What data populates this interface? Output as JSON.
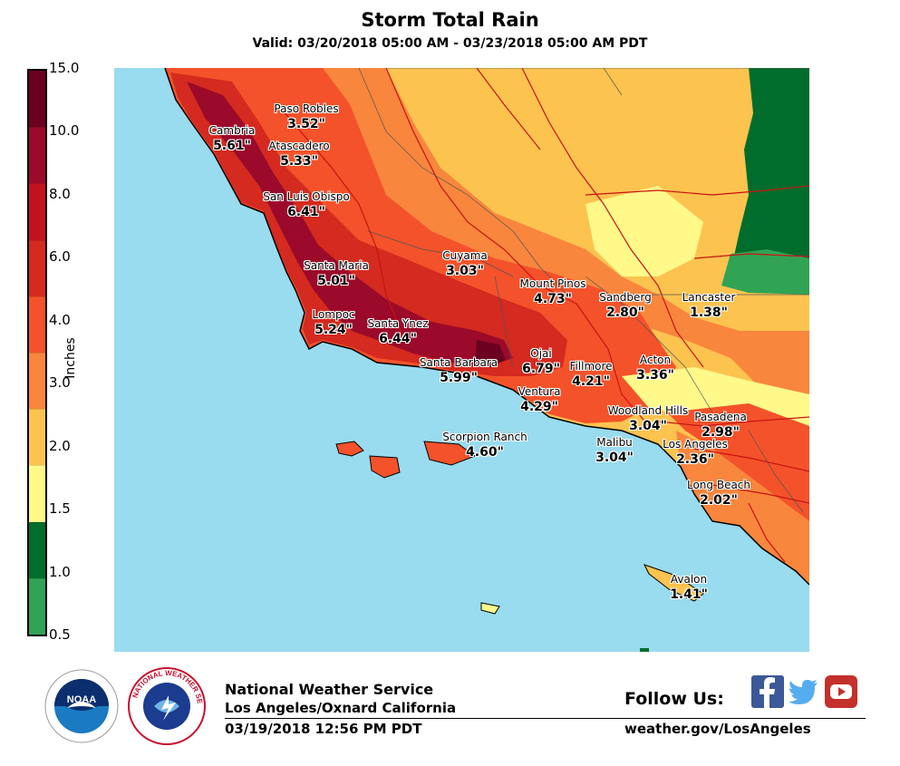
{
  "title": "Storm Total Rain",
  "subtitle": "Valid: 03/20/2018 05:00 AM - 03/23/2018 05:00 AM PDT",
  "legend": {
    "units_label": "Inches",
    "ticks": [
      "15.0",
      "10.0",
      "8.0",
      "6.0",
      "4.0",
      "3.0",
      "2.0",
      "1.5",
      "1.0",
      "0.5"
    ],
    "colors_top_to_bottom": [
      "#6b0020",
      "#9b0a2a",
      "#c2121f",
      "#d42a1f",
      "#f4522a",
      "#f8863d",
      "#fdc34f",
      "#fff98a",
      "#006d2c",
      "#31a354"
    ]
  },
  "map": {
    "ocean_color": "#99dbef",
    "stations": [
      {
        "name": "Paso Robles",
        "value": "3.52\""
      },
      {
        "name": "Cambria",
        "value": "5.61\""
      },
      {
        "name": "Atascadero",
        "value": "5.33\""
      },
      {
        "name": "San Luis Obispo",
        "value": "6.41\""
      },
      {
        "name": "Cuyama",
        "value": "3.03\""
      },
      {
        "name": "Santa Maria",
        "value": "5.01\""
      },
      {
        "name": "Mount Pinos",
        "value": "4.73\""
      },
      {
        "name": "Sandberg",
        "value": "2.80\""
      },
      {
        "name": "Lancaster",
        "value": "1.38\""
      },
      {
        "name": "Lompoc",
        "value": "5.24\""
      },
      {
        "name": "Santa Ynez",
        "value": "6.44\""
      },
      {
        "name": "Santa Barbara",
        "value": "5.99\""
      },
      {
        "name": "Ojai",
        "value": "6.79\""
      },
      {
        "name": "Fillmore",
        "value": "4.21\""
      },
      {
        "name": "Acton",
        "value": "3.36\""
      },
      {
        "name": "Ventura",
        "value": "4.29\""
      },
      {
        "name": "Woodland Hills",
        "value": "3.04\""
      },
      {
        "name": "Pasadena",
        "value": "2.98\""
      },
      {
        "name": "Scorpion Ranch",
        "value": "4.60\""
      },
      {
        "name": "Malibu",
        "value": "3.04\""
      },
      {
        "name": "Los Angeles",
        "value": "2.36\""
      },
      {
        "name": "Long Beach",
        "value": "2.02\""
      },
      {
        "name": "Avalon",
        "value": "1.41\""
      }
    ]
  },
  "footer": {
    "org": "National Weather Service",
    "office": "Los Angeles/Oxnard California",
    "issued": "03/19/2018 12:56 PM PDT",
    "follow": "Follow Us:",
    "website": "weather.gov/LosAngeles",
    "noaa_logo_text": "NOAA",
    "nws_seal_text": "NATIONAL WEATHER SERVICE"
  }
}
